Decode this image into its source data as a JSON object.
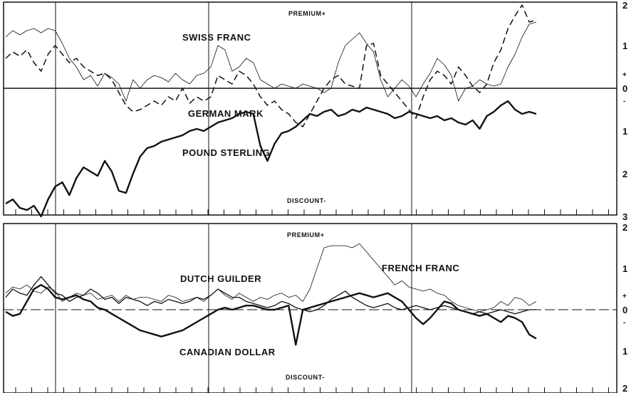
{
  "chart_data": [
    {
      "type": "line",
      "panel": "top",
      "grid": true,
      "ylim": [
        -3,
        2
      ],
      "ytick_labels": [
        {
          "value": 2,
          "label": "2"
        },
        {
          "value": 1,
          "label": "1"
        },
        {
          "value": 0,
          "label": "0"
        },
        {
          "value": -1,
          "label": "1"
        },
        {
          "value": -2,
          "label": "2"
        },
        {
          "value": -3,
          "label": "3"
        }
      ],
      "plus_sign": "+",
      "minus_sign": "-",
      "premium_label": "PREMIUM+",
      "discount_label": "DISCOUNT-",
      "n_points": 76,
      "series": [
        {
          "name": "SWISS FRANC",
          "style": "thin",
          "values": [
            1.2,
            1.35,
            1.25,
            1.35,
            1.4,
            1.3,
            1.4,
            1.35,
            1.05,
            0.7,
            0.5,
            0.2,
            0.3,
            0.05,
            0.35,
            0.25,
            0.1,
            -0.3,
            0.2,
            0.0,
            0.2,
            0.3,
            0.25,
            0.15,
            0.35,
            0.2,
            0.1,
            0.3,
            0.35,
            0.5,
            1.0,
            0.9,
            0.4,
            0.5,
            0.7,
            0.6,
            0.2,
            0.1,
            0.0,
            0.1,
            0.05,
            0.0,
            0.1,
            0.05,
            0.0,
            -0.1,
            0.0,
            0.6,
            1.0,
            1.15,
            1.3,
            1.05,
            0.85,
            0.2,
            -0.2,
            0.0,
            0.2,
            0.05,
            -0.2,
            0.1,
            0.35,
            0.7,
            0.55,
            0.3,
            -0.3,
            0.0,
            0.05,
            0.2,
            0.1,
            0.05,
            0.1,
            0.5,
            0.8,
            1.2,
            1.5,
            1.55
          ]
        },
        {
          "name": "GERMAN MARK",
          "style": "dashed",
          "values": [
            0.7,
            0.85,
            0.75,
            0.9,
            0.6,
            0.4,
            0.8,
            1.0,
            0.8,
            0.6,
            0.7,
            0.5,
            0.4,
            0.3,
            0.35,
            0.2,
            -0.1,
            -0.4,
            -0.55,
            -0.5,
            -0.4,
            -0.3,
            -0.4,
            -0.2,
            -0.3,
            0.0,
            -0.35,
            -0.2,
            -0.3,
            -0.2,
            0.3,
            0.2,
            0.1,
            0.4,
            0.3,
            0.1,
            -0.2,
            -0.4,
            -0.3,
            -0.5,
            -0.6,
            -0.8,
            -0.9,
            -0.6,
            -0.3,
            0.0,
            0.2,
            0.3,
            0.1,
            0.05,
            0.0,
            1.0,
            1.05,
            0.3,
            0.1,
            -0.1,
            -0.3,
            -0.5,
            -0.7,
            -0.2,
            0.2,
            0.4,
            0.3,
            0.1,
            0.5,
            0.3,
            0.05,
            -0.1,
            0.1,
            0.6,
            0.9,
            1.4,
            1.7,
            1.95,
            1.55,
            1.6
          ]
        },
        {
          "name": "POUND STERLING",
          "style": "thick",
          "values": [
            -2.7,
            -2.6,
            -2.8,
            -2.85,
            -2.75,
            -3.0,
            -2.6,
            -2.3,
            -2.2,
            -2.5,
            -2.1,
            -1.85,
            -1.95,
            -2.05,
            -1.7,
            -1.95,
            -2.4,
            -2.45,
            -2.0,
            -1.6,
            -1.4,
            -1.35,
            -1.25,
            -1.2,
            -1.15,
            -1.1,
            -1.0,
            -0.95,
            -1.0,
            -0.9,
            -0.8,
            -0.75,
            -0.7,
            -0.6,
            -0.55,
            -0.6,
            -1.35,
            -1.7,
            -1.3,
            -1.05,
            -1.0,
            -0.9,
            -0.75,
            -0.6,
            -0.65,
            -0.55,
            -0.5,
            -0.65,
            -0.6,
            -0.5,
            -0.55,
            -0.45,
            -0.5,
            -0.55,
            -0.6,
            -0.7,
            -0.65,
            -0.55,
            -0.6,
            -0.65,
            -0.7,
            -0.65,
            -0.75,
            -0.7,
            -0.8,
            -0.85,
            -0.75,
            -0.95,
            -0.65,
            -0.55,
            -0.4,
            -0.3,
            -0.5,
            -0.6,
            -0.55,
            -0.6
          ]
        }
      ],
      "series_labels": [
        "SWISS FRANC",
        "GERMAN MARK",
        "POUND STERLING"
      ]
    },
    {
      "type": "line",
      "panel": "bottom",
      "grid": true,
      "ylim": [
        -2,
        2
      ],
      "ytick_labels": [
        {
          "value": 2,
          "label": "2"
        },
        {
          "value": 1,
          "label": "1"
        },
        {
          "value": 0,
          "label": "0"
        },
        {
          "value": -1,
          "label": "1"
        },
        {
          "value": -2,
          "label": "2"
        }
      ],
      "plus_sign": "+",
      "minus_sign": "-",
      "premium_label": "PREMIUM+",
      "discount_label": "DISCOUNT-",
      "n_points": 76,
      "series": [
        {
          "name": "FRENCH FRANC",
          "style": "thin",
          "values": [
            0.4,
            0.55,
            0.5,
            0.6,
            0.45,
            0.4,
            0.55,
            0.45,
            0.2,
            0.3,
            0.4,
            0.35,
            0.4,
            0.25,
            0.3,
            0.35,
            0.2,
            0.35,
            0.25,
            0.3,
            0.3,
            0.25,
            0.2,
            0.35,
            0.3,
            0.2,
            0.25,
            0.3,
            0.2,
            0.35,
            0.5,
            0.35,
            0.25,
            0.4,
            0.3,
            0.2,
            0.3,
            0.25,
            0.35,
            0.4,
            0.3,
            0.35,
            0.2,
            0.5,
            1.0,
            1.5,
            1.55,
            1.55,
            1.55,
            1.5,
            1.6,
            1.4,
            1.2,
            1.0,
            0.8,
            0.6,
            0.7,
            0.55,
            0.5,
            0.45,
            0.5,
            0.4,
            0.35,
            0.2,
            0.1,
            0.05,
            0.0,
            -0.05,
            0.0,
            0.05,
            0.2,
            0.1,
            0.3,
            0.25,
            0.1,
            0.2
          ]
        },
        {
          "name": "DUTCH GUILDER",
          "style": "medium",
          "values": [
            0.3,
            0.5,
            0.4,
            0.35,
            0.6,
            0.8,
            0.6,
            0.4,
            0.35,
            0.2,
            0.3,
            0.35,
            0.5,
            0.4,
            0.25,
            0.3,
            0.15,
            0.3,
            0.25,
            0.2,
            0.1,
            0.2,
            0.15,
            0.25,
            0.2,
            0.15,
            0.2,
            0.3,
            0.25,
            0.35,
            0.5,
            0.4,
            0.3,
            0.3,
            0.2,
            0.15,
            0.1,
            0.05,
            0.1,
            0.2,
            0.15,
            0.05,
            0.0,
            -0.05,
            0.0,
            0.1,
            0.25,
            0.35,
            0.45,
            0.3,
            0.2,
            0.1,
            0.05,
            0.1,
            0.15,
            0.05,
            0.0,
            0.05,
            0.1,
            0.05,
            0.0,
            0.05,
            0.1,
            0.05,
            0.0,
            -0.05,
            -0.1,
            -0.05,
            -0.1,
            -0.05,
            0.0,
            -0.05,
            -0.1,
            -0.05,
            0.0,
            0.0
          ]
        },
        {
          "name": "CANADIAN DOLLAR",
          "style": "thick",
          "values": [
            -0.05,
            -0.15,
            -0.1,
            0.2,
            0.5,
            0.6,
            0.5,
            0.3,
            0.25,
            0.3,
            0.35,
            0.25,
            0.2,
            0.05,
            0.0,
            -0.1,
            -0.2,
            -0.3,
            -0.4,
            -0.5,
            -0.55,
            -0.6,
            -0.65,
            -0.6,
            -0.55,
            -0.5,
            -0.4,
            -0.3,
            -0.2,
            -0.1,
            0.0,
            0.05,
            0.0,
            0.05,
            0.1,
            0.1,
            0.05,
            0.0,
            0.0,
            0.05,
            0.1,
            -0.85,
            0.0,
            0.05,
            0.1,
            0.15,
            0.2,
            0.25,
            0.3,
            0.35,
            0.4,
            0.35,
            0.3,
            0.35,
            0.4,
            0.3,
            0.2,
            0.0,
            -0.2,
            -0.35,
            -0.2,
            0.0,
            0.2,
            0.15,
            0.0,
            -0.05,
            -0.1,
            -0.15,
            -0.1,
            -0.2,
            -0.3,
            -0.15,
            -0.2,
            -0.3,
            -0.6,
            -0.7
          ]
        }
      ],
      "series_labels": [
        "FRENCH FRANC",
        "DUTCH GUILDER",
        "CANADIAN DOLLAR"
      ]
    }
  ]
}
